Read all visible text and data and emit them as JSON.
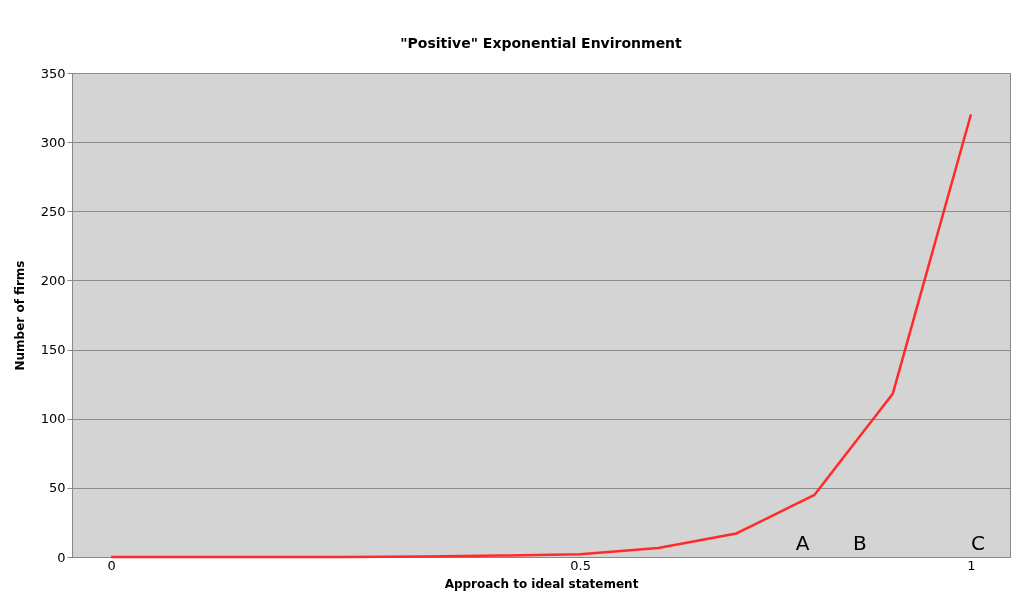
{
  "chart_data": {
    "type": "line",
    "title": "\"Positive\" Exponential Environment",
    "xlabel": "Approach to ideal statement",
    "ylabel": "Number of firms",
    "categories": [
      "0",
      null,
      null,
      null,
      null,
      null,
      "0.5",
      null,
      null,
      null,
      null,
      "1"
    ],
    "series": [
      {
        "color": "#ff2a2a",
        "values": [
          0,
          0,
          0,
          0,
          0.3,
          1,
          2,
          6.5,
          17,
          45,
          118,
          320
        ]
      }
    ],
    "ylim": [
      0,
      350
    ],
    "yticks": [
      0,
      50,
      100,
      150,
      200,
      250,
      300,
      350
    ],
    "grid": "y",
    "marker": "none",
    "line_style": "solid",
    "annotations": [
      "A",
      "B",
      "C"
    ]
  }
}
